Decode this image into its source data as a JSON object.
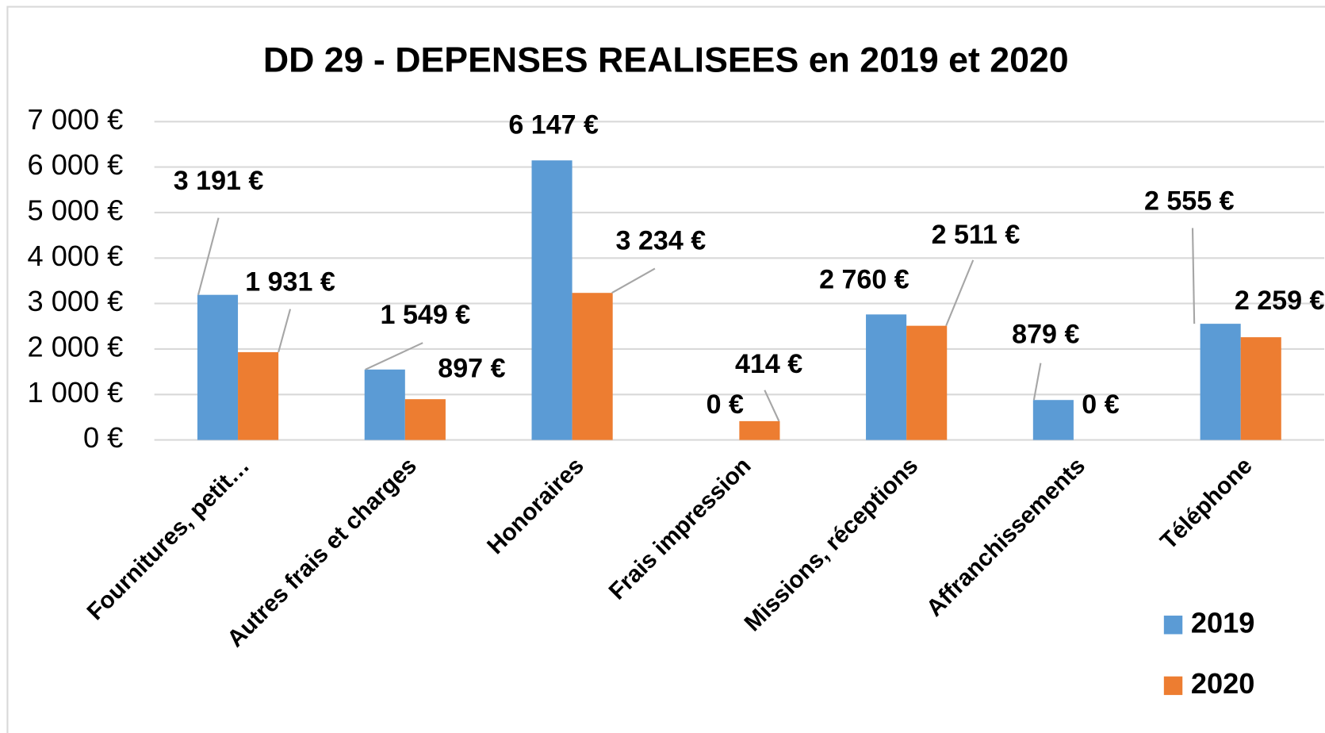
{
  "chart_data": {
    "type": "bar",
    "title": "DD 29 - DEPENSES REALISEES en 2019 et 2020",
    "categories": [
      "Fournitures, petit…",
      "Autres frais et charges",
      "Honoraires",
      "Frais impression",
      "Missions, réceptions",
      "Affranchissements",
      "Téléphone"
    ],
    "series": [
      {
        "name": "2019",
        "color": "#5b9bd5",
        "values": [
          3191,
          1549,
          6147,
          0,
          2760,
          879,
          2555
        ],
        "value_labels": [
          "3 191 €",
          "1 549 €",
          "6 147 €",
          "0 €",
          "2 760 €",
          "879 €",
          "2 555 €"
        ]
      },
      {
        "name": "2020",
        "color": "#ed7d31",
        "values": [
          1931,
          897,
          3234,
          414,
          2511,
          0,
          2259
        ],
        "value_labels": [
          "1 931 €",
          "897 €",
          "3 234 €",
          "414 €",
          "2 511 €",
          "0 €",
          "2 259 €"
        ]
      }
    ],
    "ylim": [
      0,
      7000
    ],
    "yticks": [
      {
        "value": 0,
        "label": "0 €"
      },
      {
        "value": 1000,
        "label": "1 000 €"
      },
      {
        "value": 2000,
        "label": "2 000 €"
      },
      {
        "value": 3000,
        "label": "3 000 €"
      },
      {
        "value": 4000,
        "label": "4 000 €"
      },
      {
        "value": 5000,
        "label": "5 000 €"
      },
      {
        "value": 6000,
        "label": "6 000 €"
      },
      {
        "value": 7000,
        "label": "7 000 €"
      }
    ],
    "grid": true,
    "legend": "bottom-right"
  }
}
